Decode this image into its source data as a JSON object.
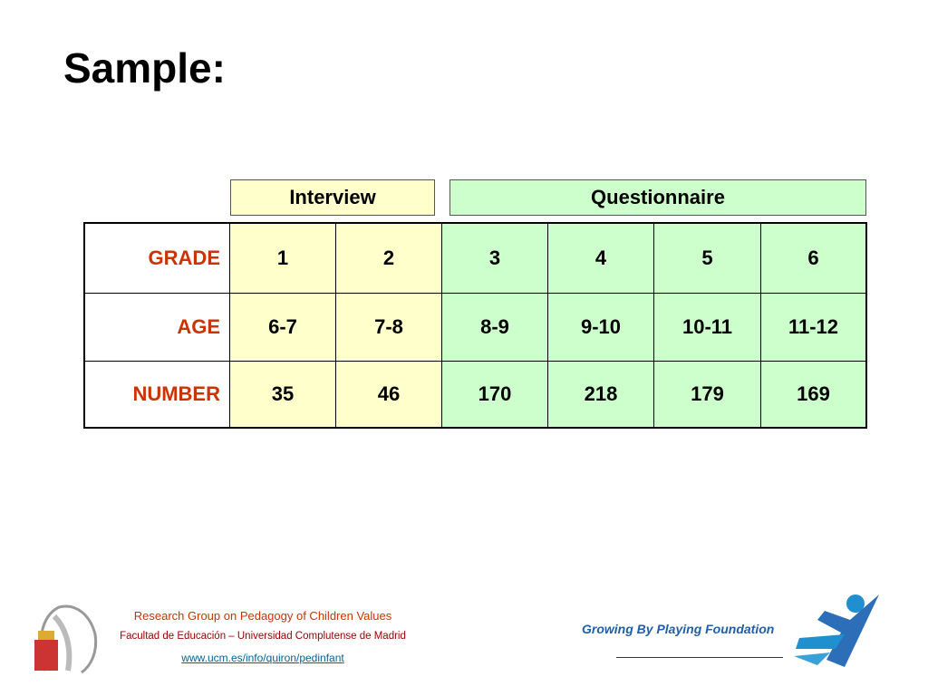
{
  "title": "Sample:",
  "groups": [
    "Interview",
    "Questionnaire"
  ],
  "table": {
    "rows": [
      {
        "label": "GRADE",
        "cells": [
          1,
          2,
          3,
          4,
          5,
          6
        ]
      },
      {
        "label": "AGE",
        "cells": [
          "6-7",
          "7-8",
          "8-9",
          "9-10",
          "10-11",
          "11-12"
        ]
      },
      {
        "label": "NUMBER",
        "cells": [
          35,
          46,
          170,
          218,
          179,
          169
        ]
      }
    ]
  },
  "footer": {
    "group": "Research Group on Pedagogy of Children Values",
    "faculty": "Facultad de Educación – Universidad Complutense de Madrid",
    "url": "www.ucm.es/info/quiron/pedinfant",
    "foundation": "Growing By Playing Foundation"
  }
}
